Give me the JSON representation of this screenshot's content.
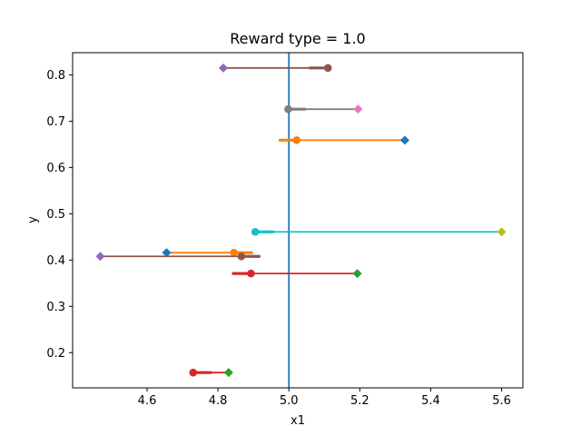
{
  "chart_data": {
    "type": "scatter",
    "title": "Reward type = 1.0",
    "xlabel": "x1",
    "ylabel": "y",
    "xlim": [
      4.39,
      5.66
    ],
    "ylim": [
      0.124,
      0.848
    ],
    "xticks": [
      4.6,
      4.8,
      5.0,
      5.2,
      5.4,
      5.6
    ],
    "yticks": [
      0.2,
      0.3,
      0.4,
      0.5,
      0.6,
      0.7,
      0.8
    ],
    "xtick_labels": [
      "4.6",
      "4.8",
      "5.0",
      "5.2",
      "5.4",
      "5.6"
    ],
    "ytick_labels": [
      "0.2",
      "0.3",
      "0.4",
      "0.5",
      "0.6",
      "0.7",
      "0.8"
    ],
    "grid": false,
    "legend": "none",
    "reference_line": {
      "x": 5.0,
      "color": "#1f77b4"
    },
    "segments": [
      {
        "y": 0.815,
        "x_start": 5.11,
        "x_end": 4.815,
        "arrow_from": 5.06,
        "line_color": "#8c564b",
        "start_color": "#8c564b",
        "end_color": "#9467bd"
      },
      {
        "y": 0.726,
        "x_start": 4.998,
        "x_end": 5.195,
        "arrow_from": 5.045,
        "line_color": "#7f7f7f",
        "start_color": "#7f7f7f",
        "end_color": "#e377c2"
      },
      {
        "y": 0.659,
        "x_start": 5.022,
        "x_end": 5.327,
        "arrow_from": 4.975,
        "line_color": "#ff7f0e",
        "start_color": "#ff7f0e",
        "end_color": "#1f77b4"
      },
      {
        "y": 0.461,
        "x_start": 4.905,
        "x_end": 5.6,
        "arrow_from": 4.955,
        "line_color": "#17becf",
        "start_color": "#17becf",
        "end_color": "#bcbd22"
      },
      {
        "y": 0.416,
        "x_start": 4.845,
        "x_end": 4.655,
        "arrow_from": 4.895,
        "line_color": "#ff7f0e",
        "start_color": "#ff7f0e",
        "end_color": "#1f77b4"
      },
      {
        "y": 0.408,
        "x_start": 4.866,
        "x_end": 4.468,
        "arrow_from": 4.916,
        "line_color": "#8c564b",
        "start_color": "#8c564b",
        "end_color": "#9467bd"
      },
      {
        "y": 0.371,
        "x_start": 4.893,
        "x_end": 5.193,
        "arrow_from": 4.843,
        "line_color": "#d62728",
        "start_color": "#d62728",
        "end_color": "#2ca02c"
      },
      {
        "y": 0.157,
        "x_start": 4.73,
        "x_end": 4.83,
        "arrow_from": 4.78,
        "line_color": "#d62728",
        "start_color": "#d62728",
        "end_color": "#2ca02c"
      }
    ]
  }
}
